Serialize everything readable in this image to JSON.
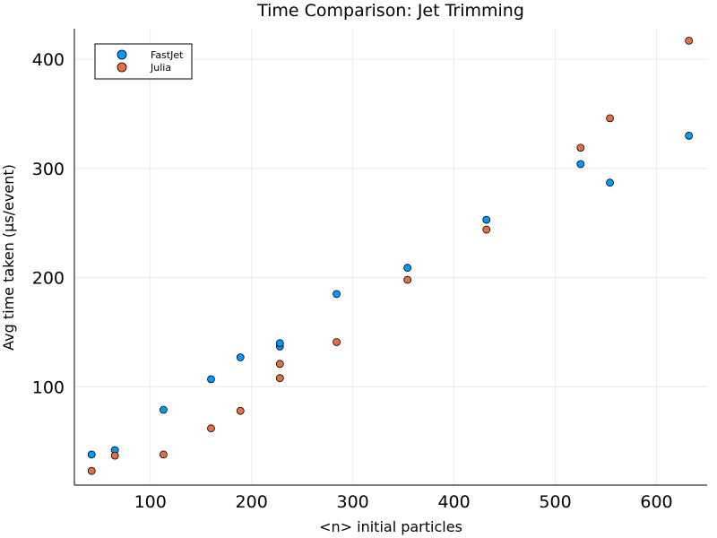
{
  "chart_data": {
    "type": "scatter",
    "title": "Time Comparison: Jet Trimming",
    "xlabel": "<n> initial particles",
    "ylabel": "Avg time taken (μs/event)",
    "xlim": [
      25,
      650
    ],
    "ylim": [
      10,
      428
    ],
    "xticks": [
      100,
      200,
      300,
      400,
      500,
      600
    ],
    "yticks": [
      100,
      200,
      300,
      400
    ],
    "grid": true,
    "legend_position": "top-left",
    "series": [
      {
        "name": "FastJet",
        "color": "#009AFA",
        "x": [
          42,
          65,
          113,
          160,
          189,
          228,
          228,
          284,
          354,
          432,
          525,
          554,
          632
        ],
        "y": [
          38,
          42,
          79,
          107,
          127,
          137,
          140,
          185,
          209,
          253,
          304,
          287,
          330
        ]
      },
      {
        "name": "Julia",
        "color": "#E26F46",
        "x": [
          42,
          65,
          113,
          160,
          189,
          228,
          228,
          284,
          354,
          432,
          525,
          554,
          632
        ],
        "y": [
          23,
          37,
          38,
          62,
          78,
          108,
          121,
          141,
          198,
          244,
          319,
          346,
          417
        ]
      }
    ]
  }
}
